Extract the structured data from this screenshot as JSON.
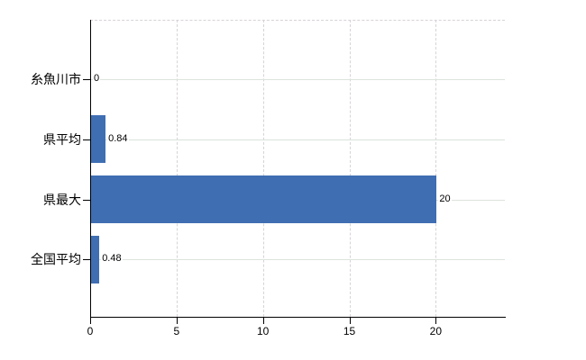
{
  "chart_data": {
    "type": "bar",
    "orientation": "horizontal",
    "title": "",
    "xlabel": "",
    "ylabel": "",
    "categories": [
      "糸魚川市",
      "県平均",
      "県最大",
      "全国平均"
    ],
    "values": [
      0,
      0.84,
      20,
      0.48
    ],
    "value_labels": [
      "0",
      "0.84",
      "20",
      "0.48"
    ],
    "x_ticks": [
      0,
      5,
      10,
      15,
      20
    ],
    "x_tick_labels": [
      "0",
      "5",
      "10",
      "15",
      "20"
    ],
    "xlim": [
      0,
      24
    ],
    "grid": {
      "horizontal": "solid",
      "vertical": "dashed",
      "top_border": "dashed"
    },
    "legend": "none",
    "colors": {
      "bar": "#3f6eb3",
      "axis": "#000000",
      "h_gridline": "#dce3dc",
      "v_gridline": "#d8d2d8",
      "background": "#ffffff",
      "text": "#000000"
    }
  }
}
